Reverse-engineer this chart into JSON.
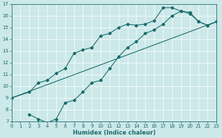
{
  "xlabel": "Humidex (Indice chaleur)",
  "xlim": [
    0,
    23
  ],
  "ylim": [
    7,
    17
  ],
  "xticks": [
    0,
    1,
    2,
    3,
    4,
    5,
    6,
    7,
    8,
    9,
    10,
    11,
    12,
    13,
    14,
    15,
    16,
    17,
    18,
    19,
    20,
    21,
    22,
    23
  ],
  "yticks": [
    7,
    8,
    9,
    10,
    11,
    12,
    13,
    14,
    15,
    16,
    17
  ],
  "bg_color": "#cce8e8",
  "grid_color": "#b8d4d4",
  "line_color": "#1a6b6b",
  "line1_x": [
    0,
    23
  ],
  "line1_y": [
    9.0,
    15.5
  ],
  "line2_x": [
    0,
    2,
    3,
    4,
    5,
    6,
    7,
    8,
    9,
    10,
    11,
    12,
    13,
    14,
    15,
    16,
    17,
    18,
    19,
    20,
    21,
    22,
    23
  ],
  "line2_y": [
    9.0,
    9.5,
    10.3,
    10.5,
    11.1,
    11.5,
    12.8,
    13.1,
    13.3,
    14.3,
    14.5,
    15.0,
    15.3,
    15.2,
    15.3,
    15.6,
    16.7,
    16.7,
    16.4,
    16.3,
    15.5,
    15.2,
    15.5
  ],
  "line3_x": [
    2,
    3,
    4,
    5,
    6,
    7,
    8,
    9,
    10,
    11,
    12,
    13,
    14,
    15,
    16,
    17,
    18,
    19,
    20,
    21,
    22,
    23
  ],
  "line3_y": [
    7.6,
    7.2,
    6.9,
    7.2,
    8.6,
    8.8,
    9.5,
    10.3,
    10.5,
    11.5,
    12.5,
    13.3,
    13.8,
    14.5,
    14.8,
    15.3,
    16.0,
    16.4,
    16.2,
    15.5,
    15.2,
    15.5
  ],
  "marker": "D",
  "markersize": 2.0,
  "linewidth": 0.8,
  "tick_fontsize": 5.0,
  "xlabel_fontsize": 6.0
}
